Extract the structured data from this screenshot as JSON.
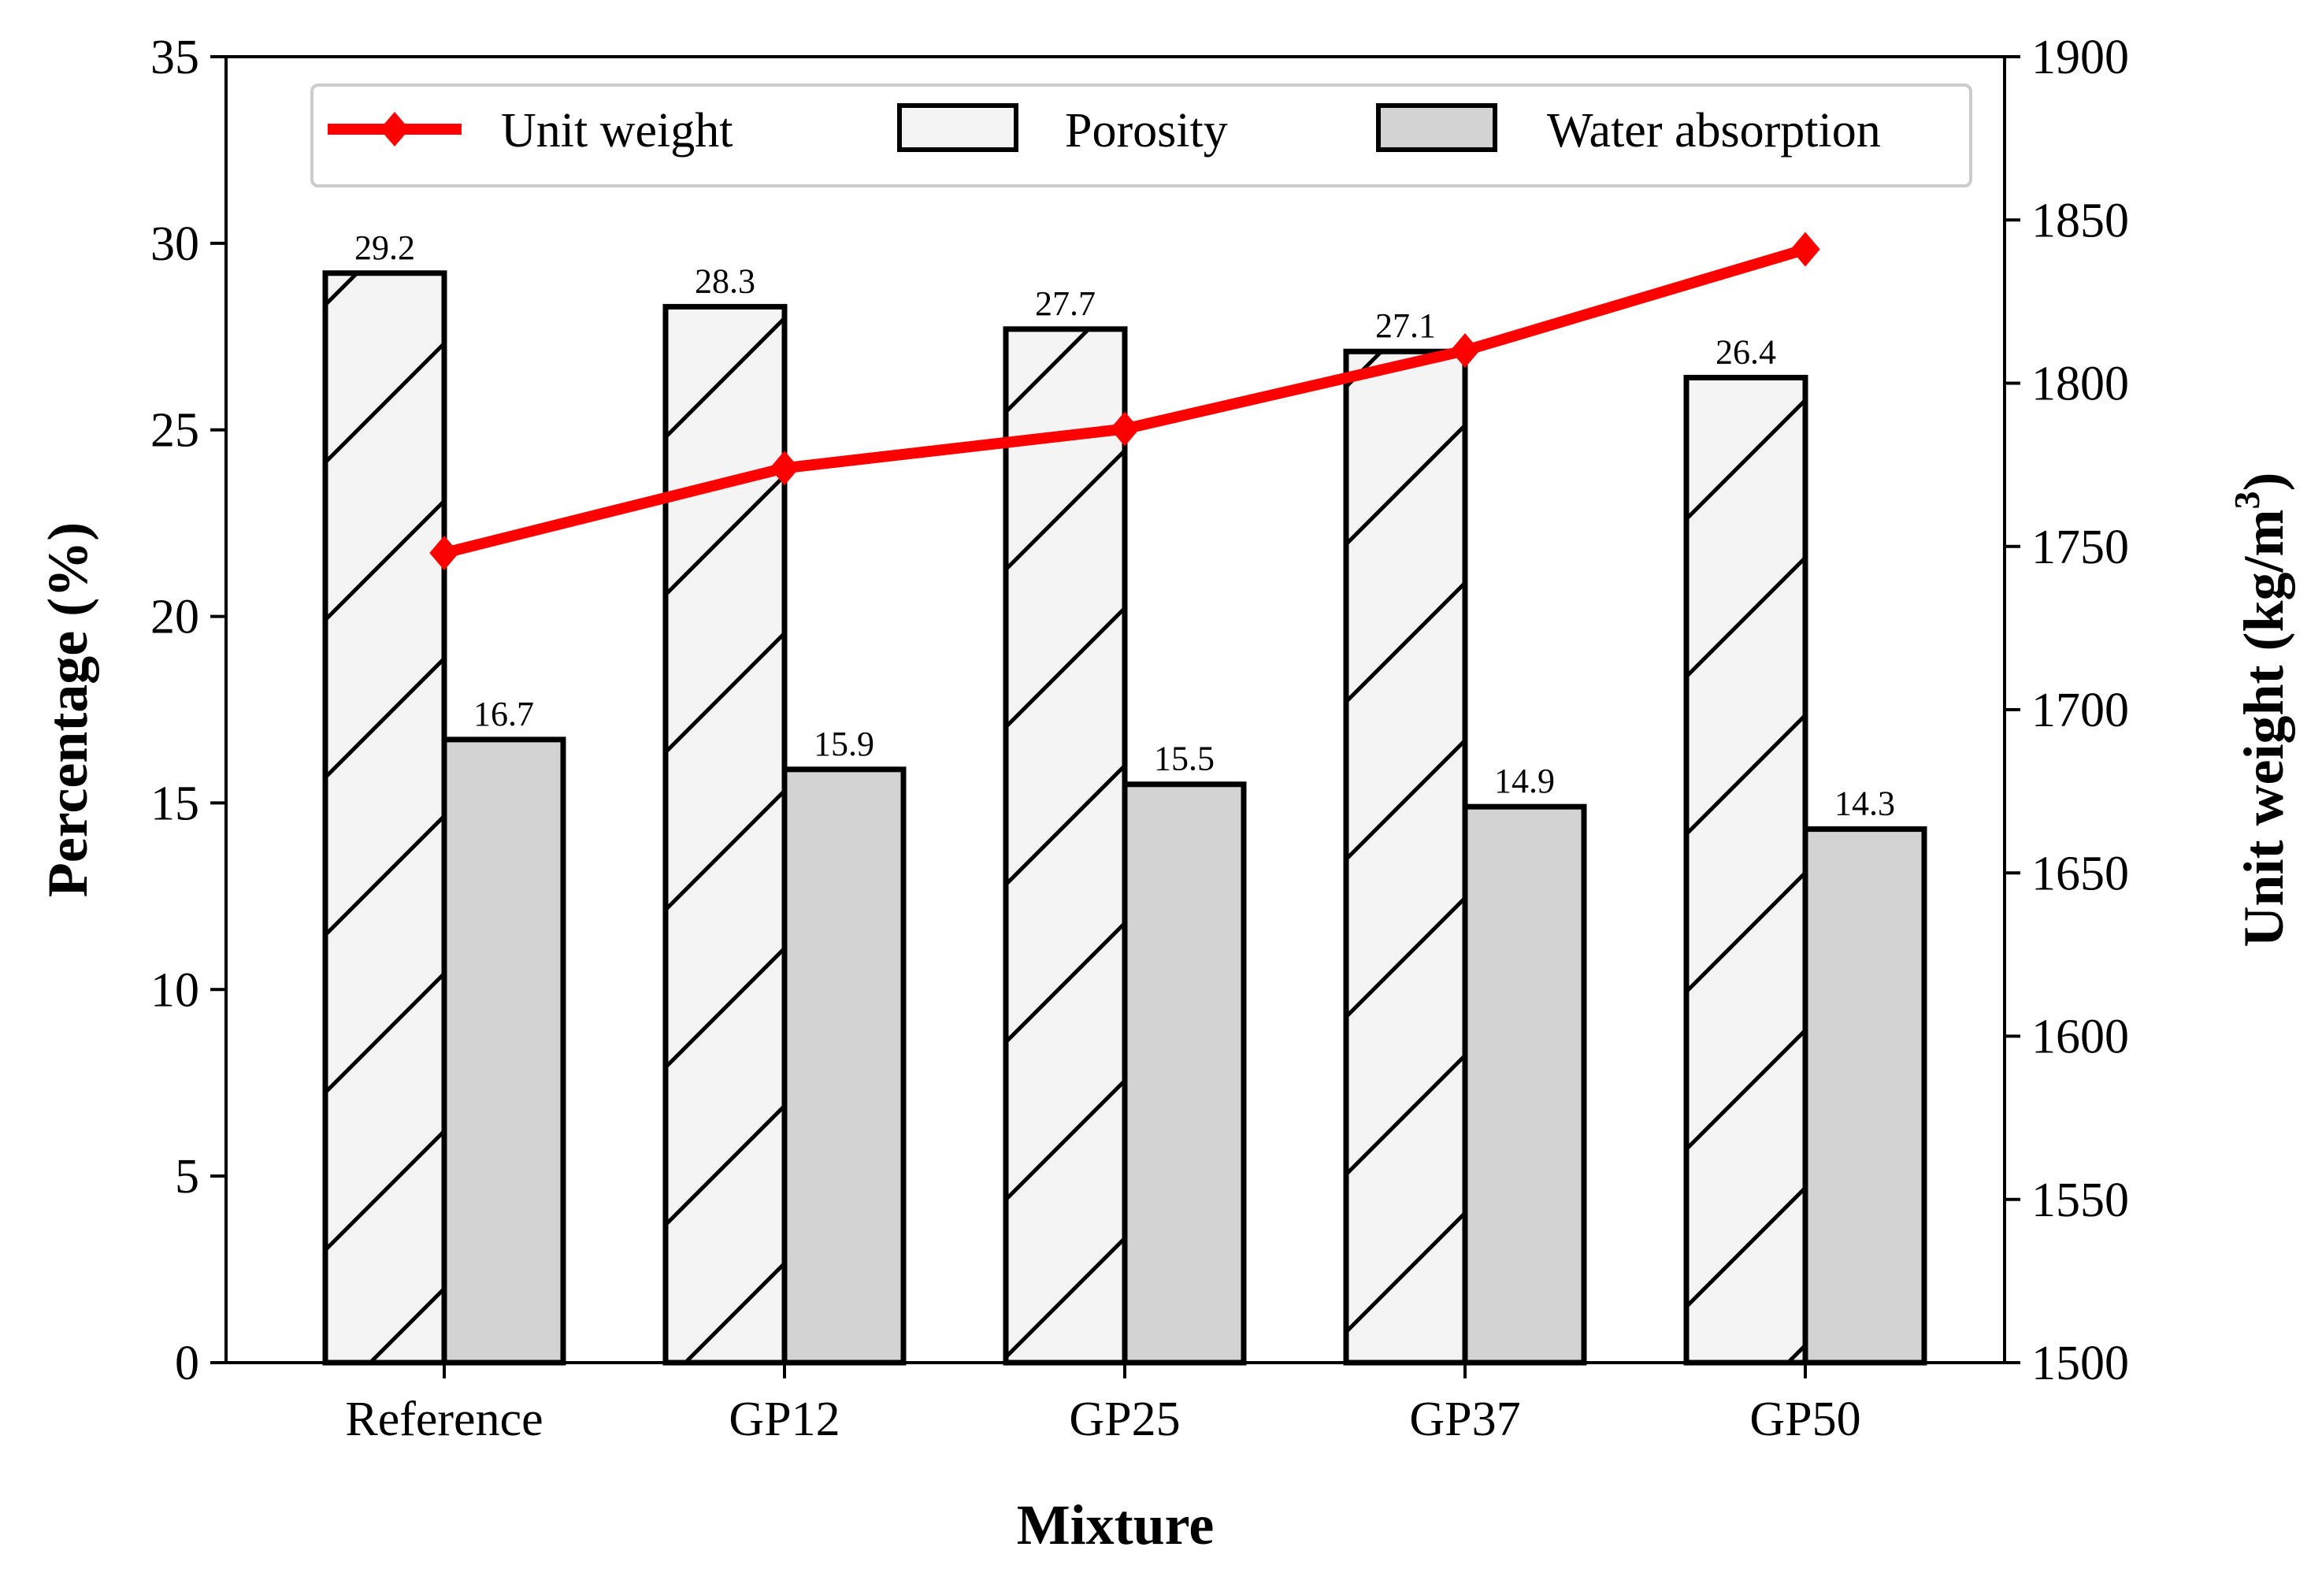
{
  "chart_data": {
    "type": "bar",
    "xlabel": "Mixture",
    "ylabel": "Percentage (%)",
    "y2label": "Unit weight (kg/m",
    "y2label_sup": "3",
    "y2label_end": ")",
    "categories": [
      "Reference",
      "GP12",
      "GP25",
      "GP37",
      "GP50"
    ],
    "ylim": [
      0,
      35
    ],
    "yticks": [
      "0",
      "5",
      "10",
      "15",
      "20",
      "25",
      "30",
      "35"
    ],
    "y2lim": [
      1500,
      1900
    ],
    "y2ticks": [
      "1500",
      "1550",
      "1600",
      "1650",
      "1700",
      "1750",
      "1800",
      "1850",
      "1900"
    ],
    "grid": false,
    "legend_position": "top",
    "series": [
      {
        "name": "Porosity",
        "type": "bar",
        "axis": "left",
        "pattern": "hatched",
        "color": "#f4f4f4",
        "values": [
          29.2,
          28.3,
          27.7,
          27.1,
          26.4
        ],
        "labels": [
          "29.2",
          "28.3",
          "27.7",
          "27.1",
          "26.4"
        ]
      },
      {
        "name": "Water absorption",
        "type": "bar",
        "axis": "left",
        "color": "#d3d3d3",
        "values": [
          16.7,
          15.9,
          15.5,
          14.9,
          14.3
        ],
        "labels": [
          "16.7",
          "15.9",
          "15.5",
          "14.9",
          "14.3"
        ]
      },
      {
        "name": "Unit weight",
        "type": "line",
        "axis": "right",
        "marker": "diamond",
        "color": "#ff0000",
        "values": [
          1748,
          1774,
          1786,
          1810,
          1841
        ]
      }
    ]
  }
}
